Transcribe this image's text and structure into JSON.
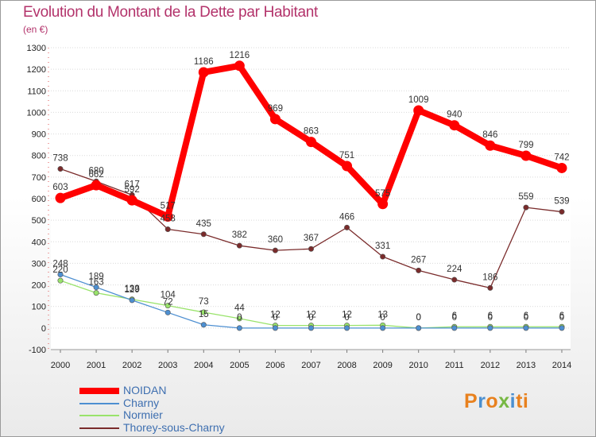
{
  "chart_data": {
    "type": "line",
    "title": "Evolution du Montant de la Dette par Habitant",
    "subtitle": "(en €)",
    "x": [
      "2000",
      "2001",
      "2002",
      "2003",
      "2004",
      "2005",
      "2006",
      "2007",
      "2008",
      "2009",
      "2010",
      "2011",
      "2012",
      "2013",
      "2014"
    ],
    "ylim": [
      -100,
      1300
    ],
    "yticks": [
      -100,
      0,
      100,
      200,
      300,
      400,
      500,
      600,
      700,
      800,
      900,
      1000,
      1100,
      1200,
      1300
    ],
    "grid": "horizontal",
    "legend_position": "bottom-left",
    "series": [
      {
        "name": "NOIDAN",
        "color": "#ff0000",
        "values": [
          603,
          662,
          592,
          517,
          1186,
          1216,
          969,
          863,
          751,
          575,
          1009,
          940,
          846,
          799,
          742
        ],
        "labels": [
          "603",
          "662",
          "592",
          "517",
          "1186",
          "1216",
          "969",
          "863",
          "751",
          "575",
          "1009",
          "940",
          "846",
          "799",
          "742"
        ]
      },
      {
        "name": "Charny",
        "color": "#4d8fd1",
        "values": [
          248,
          189,
          129,
          72,
          15,
          0,
          0,
          0,
          0,
          0,
          0,
          0,
          0,
          0,
          0
        ],
        "labels": [
          "248",
          "189",
          "129",
          "72",
          "15",
          "0",
          "0",
          "0",
          "0",
          "0",
          "0",
          "0",
          "0",
          "0",
          "0"
        ]
      },
      {
        "name": "Normier",
        "color": "#99e36b",
        "values": [
          220,
          163,
          133,
          104,
          73,
          44,
          12,
          12,
          12,
          13,
          0,
          6,
          6,
          6,
          6
        ],
        "labels": [
          "220",
          "163",
          "133",
          "104",
          "73",
          "44",
          "12",
          "12",
          "12",
          "13",
          "0",
          "6",
          "6",
          "6",
          "6"
        ]
      },
      {
        "name": "Thorey-sous-Charny",
        "color": "#7a2b2b",
        "values": [
          738,
          680,
          617,
          458,
          435,
          382,
          360,
          367,
          466,
          331,
          267,
          224,
          186,
          559,
          539
        ],
        "labels": [
          "738",
          "680",
          "617",
          "458",
          "435",
          "382",
          "360",
          "367",
          "466",
          "331",
          "267",
          "224",
          "186",
          "559",
          "539"
        ]
      }
    ]
  },
  "logo": {
    "text": "Proxiti",
    "colors": [
      "#e8811e",
      "#4a8fd0",
      "#e8811e",
      "#77b843",
      "#4a8fd0",
      "#e8811e",
      "#e8811e"
    ]
  }
}
